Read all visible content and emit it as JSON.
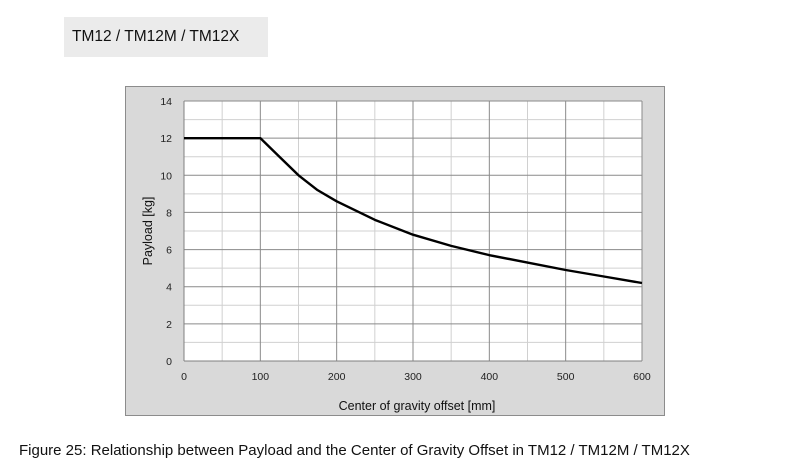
{
  "header": {
    "title": "TM12 / TM12M / TM12X"
  },
  "figure": {
    "caption": "Figure 25: Relationship between Payload and the Center of Gravity Offset in TM12 / TM12M / TM12X"
  },
  "chart_data": {
    "type": "line",
    "xlabel": "Center of gravity offset [mm]",
    "ylabel": "Payload [kg]",
    "xlim": [
      0,
      600
    ],
    "ylim": [
      0,
      14
    ],
    "x_ticks": [
      0,
      100,
      200,
      300,
      400,
      500,
      600
    ],
    "y_ticks": [
      0,
      2,
      4,
      6,
      8,
      10,
      12,
      14
    ],
    "grid": true,
    "x_minor_step": 50,
    "y_minor_step": 1,
    "legend": "none",
    "series": [
      {
        "color": "#000000",
        "x": [
          0,
          100,
          125,
          150,
          175,
          200,
          250,
          300,
          350,
          400,
          450,
          500,
          550,
          600
        ],
        "y": [
          12,
          12,
          11.0,
          10.0,
          9.2,
          8.6,
          7.6,
          6.8,
          6.2,
          5.7,
          5.3,
          4.9,
          4.55,
          4.2
        ]
      }
    ]
  }
}
